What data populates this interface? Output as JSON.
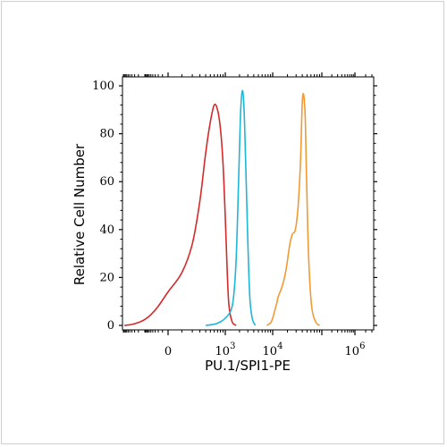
{
  "chart_data": {
    "type": "line",
    "title": "",
    "xlabel": "PU.1/SPI1-PE",
    "ylabel": "Relative Cell Number",
    "x_scale": "biexponential",
    "ylim": [
      0,
      100
    ],
    "grid": false,
    "legend": "none",
    "y_ticks": [
      "0",
      "20",
      "40",
      "60",
      "80",
      "100"
    ],
    "x_ticks": [
      {
        "base": "0",
        "exp": ""
      },
      {
        "base": "10",
        "exp": "3"
      },
      {
        "base": "10",
        "exp": "4"
      },
      {
        "base": "10",
        "exp": "6"
      }
    ],
    "series": [
      {
        "color": "#d42a2a",
        "x": [
          -9000,
          -4000,
          -2000,
          -1000,
          -500,
          -200,
          0,
          100,
          200,
          300,
          400,
          500,
          600,
          700,
          800,
          900,
          1000,
          1100,
          1200,
          1400,
          1700
        ],
        "y": [
          0,
          0.4,
          1.2,
          2.5,
          4.5,
          8,
          14,
          22,
          34,
          52,
          72,
          85,
          92,
          90,
          82,
          68,
          45,
          22,
          8,
          1.5,
          0
        ]
      },
      {
        "color": "#1fb6d6",
        "x": [
          400,
          600,
          800,
          1000,
          1300,
          1500,
          1700,
          1900,
          2100,
          2300,
          2500,
          2700,
          3000,
          3300,
          3700,
          4300
        ],
        "y": [
          0,
          0.5,
          1.5,
          3,
          6,
          12,
          28,
          58,
          88,
          98,
          90,
          68,
          35,
          12,
          3,
          0
        ]
      },
      {
        "color": "#f09a35",
        "x": [
          7500,
          9000,
          10000,
          12000,
          13000,
          16000,
          19000,
          22000,
          25000,
          29000,
          33000,
          37000,
          40000,
          43000,
          46000,
          49000,
          54000,
          62000,
          75000,
          90000
        ],
        "y": [
          0,
          1,
          3,
          9,
          12,
          17,
          24,
          33,
          38,
          40,
          50,
          70,
          93,
          96,
          86,
          60,
          28,
          8,
          1.5,
          0
        ]
      }
    ]
  }
}
